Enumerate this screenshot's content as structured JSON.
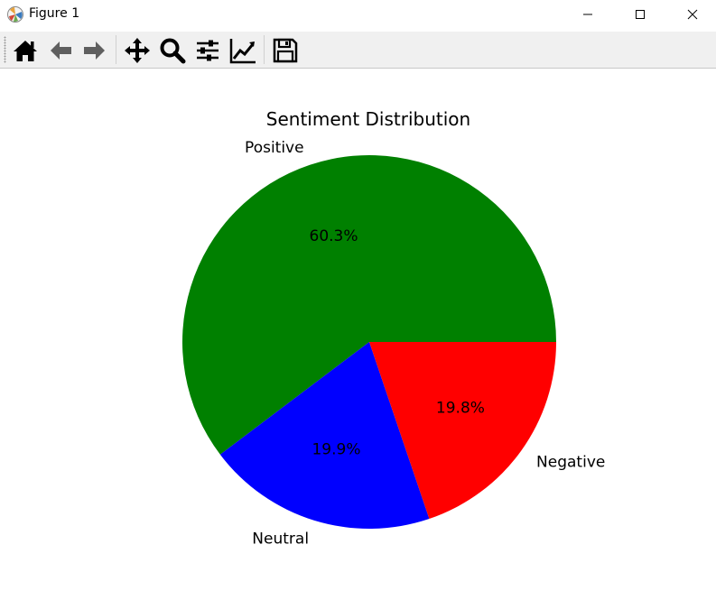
{
  "window": {
    "title": "Figure 1"
  },
  "toolbar": {
    "icons": [
      "home-icon",
      "back-arrow-icon",
      "forward-arrow-icon",
      "pan-move-icon",
      "zoom-magnifier-icon",
      "configure-subplots-icon",
      "edit-axes-icon",
      "save-floppy-icon"
    ]
  },
  "chart_data": {
    "type": "pie",
    "title": "Sentiment Distribution",
    "labels": [
      "Positive",
      "Neutral",
      "Negative"
    ],
    "values": [
      60.3,
      19.9,
      19.8
    ],
    "pct_labels": [
      "60.3%",
      "19.9%",
      "19.8%"
    ],
    "colors": [
      "#008000",
      "#0000ff",
      "#ff0000"
    ],
    "start_angle_deg": 0,
    "direction": "counterclockwise"
  }
}
